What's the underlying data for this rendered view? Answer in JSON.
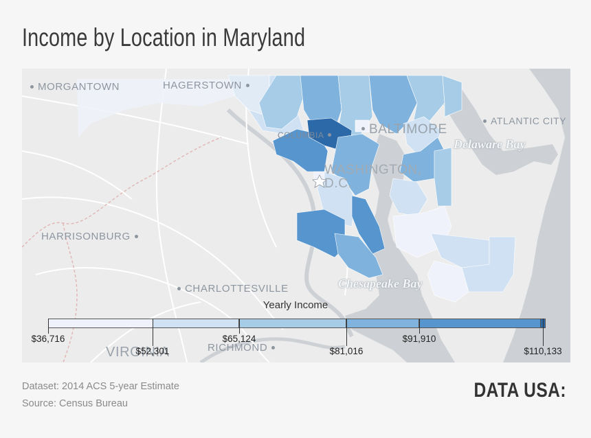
{
  "title": "Income by Location in Maryland",
  "map": {
    "places": [
      {
        "name": "MORGANTOWN"
      },
      {
        "name": "HAGERSTOWN"
      },
      {
        "name": "BALTIMORE"
      },
      {
        "name": "ATLANTIC CITY"
      },
      {
        "name": "COLUMBIA"
      },
      {
        "name": "WASHINGTON, D.C."
      },
      {
        "name": "HARRISONBURG"
      },
      {
        "name": "CHARLOTTESVILLE"
      },
      {
        "name": "RICHMOND"
      },
      {
        "name": "VIRGINIA"
      }
    ],
    "water": [
      {
        "name": "Delaware Bay"
      },
      {
        "name": "Chesapeake Bay"
      }
    ],
    "colors": {
      "land": "#ececec",
      "water": "#cdd1d5",
      "roads": "#ffffff",
      "borders": "#e2b7b7",
      "lightest": "#eef1fa",
      "darkest": "#2c69a8"
    }
  },
  "legend": {
    "title": "Yearly Income",
    "breaks": [
      "$36,716",
      "$52,301",
      "$65,124",
      "$81,016",
      "$91,910",
      "$110,133"
    ],
    "colors": [
      "#f0f2fb",
      "#cfe1f2",
      "#a6cce8",
      "#7fb3dd",
      "#5795cf"
    ]
  },
  "footer": {
    "dataset": "Dataset: 2014 ACS 5-year Estimate",
    "source": "Source: Census Bureau"
  },
  "brand": "DATA USA:"
}
